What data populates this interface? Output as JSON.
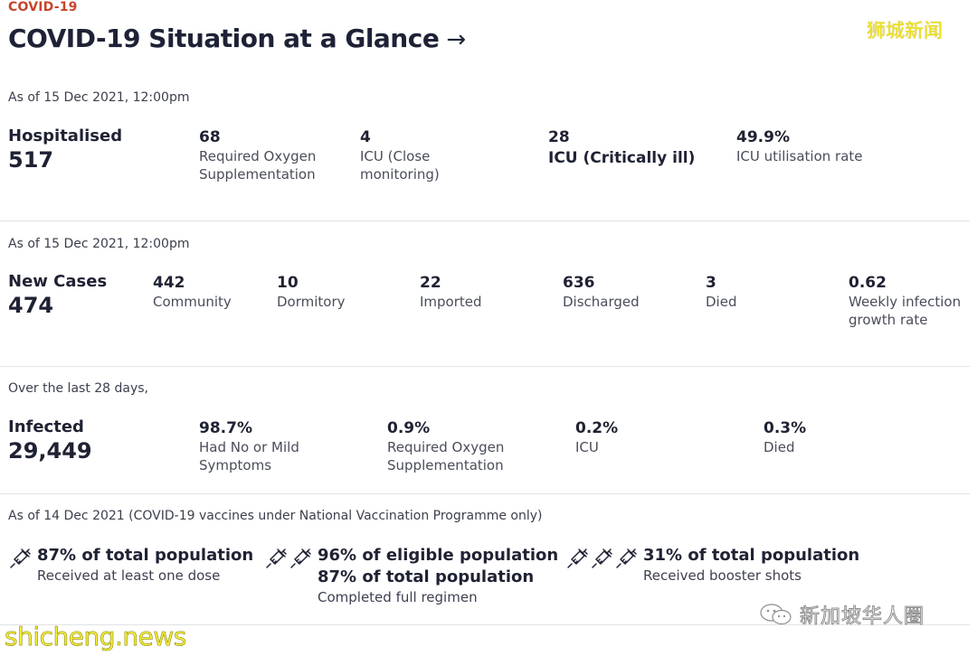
{
  "header": {
    "kicker": "COVID-19",
    "title": "COVID-19 Situation at a Glance",
    "arrow": "→",
    "watermark": "狮城新闻"
  },
  "hospital": {
    "as_of": "As of 15 Dec 2021, 12:00pm",
    "lead_label": "Hospitalised",
    "lead_value": "517",
    "stats": [
      {
        "num": "68",
        "desc": "Required Oxygen Supplementation"
      },
      {
        "num": "4",
        "desc": "ICU (Close monitoring)"
      },
      {
        "num": "28",
        "desc": "ICU (Critically ill)"
      },
      {
        "num": "49.9%",
        "desc": "ICU utilisation rate"
      }
    ]
  },
  "cases": {
    "as_of": "As of 15 Dec 2021, 12:00pm",
    "lead_label": "New Cases",
    "lead_value": "474",
    "stats": [
      {
        "num": "442",
        "desc": "Community"
      },
      {
        "num": "10",
        "desc": "Dormitory"
      },
      {
        "num": "22",
        "desc": "Imported"
      },
      {
        "num": "636",
        "desc": "Discharged"
      },
      {
        "num": "3",
        "desc": "Died"
      },
      {
        "num": "0.62",
        "desc": "Weekly infection growth rate"
      }
    ]
  },
  "infected": {
    "as_of": "Over the last 28 days,",
    "lead_label": "Infected",
    "lead_value": "29,449",
    "stats": [
      {
        "num": "98.7%",
        "desc": "Had No or Mild Symptoms"
      },
      {
        "num": "0.9%",
        "desc": "Required Oxygen Supplementation"
      },
      {
        "num": "0.2%",
        "desc": "ICU"
      },
      {
        "num": "0.3%",
        "desc": "Died"
      }
    ]
  },
  "vaccination": {
    "as_of": "As of 14 Dec 2021 (COVID-19 vaccines under National Vaccination Programme only)",
    "items": [
      {
        "icon": "syringe-icon",
        "head1": "87% of total population",
        "head2": "",
        "sub": "Received at least one dose"
      },
      {
        "icon": "syringe-icon",
        "head1": "96% of eligible population",
        "head2": "87% of total population",
        "sub": "Completed full regimen"
      },
      {
        "icon": "syringe-icon",
        "head1": "31% of total population",
        "head2": "",
        "sub": "Received booster shots"
      }
    ]
  },
  "watermarks": {
    "wechat": "新加坡华人圈",
    "site": "shicheng.news"
  }
}
